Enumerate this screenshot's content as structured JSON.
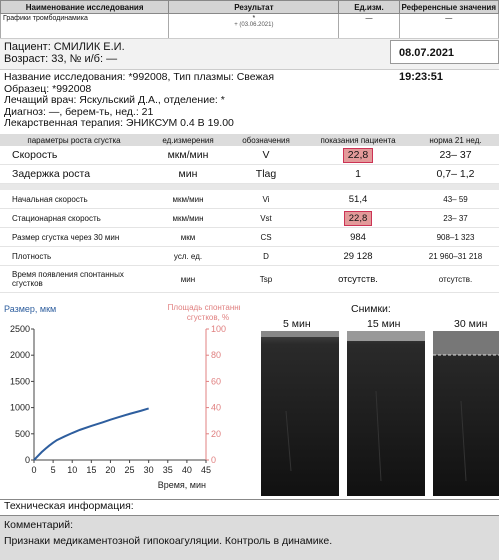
{
  "top_table": {
    "headers": [
      "Наименование исследования",
      "Результат",
      "Ед.изм.",
      "Референсные значения"
    ],
    "row": {
      "name": "Графики тромбодинамика",
      "result": "*",
      "result_sub": "+ (03.06.2021)",
      "unit": "—",
      "ref": "—"
    }
  },
  "patient": {
    "line1": "Пациент: СМИЛИК Е.И.",
    "line2": "Возраст: 33, № и/б: —",
    "date": "08.07.2021 19:23:51"
  },
  "info": {
    "line1": "Название исследования: *992008, Тип плазмы: Свежая",
    "line2": "Образец: *992008",
    "line3": "Лечащий врач: Яскульский Д.А., отделение: *",
    "line4": "Диагноз: —, берем-ть, нед.: 21",
    "line5": "Лекарственная терапия: ЭНИКСУМ 0.4 В 19.00"
  },
  "params": {
    "headers": [
      "параметры роста сгустка",
      "ед.измерения",
      "обозначения",
      "показания пациента",
      "норма 21 нед."
    ],
    "rows": [
      {
        "name": "Скорость",
        "unit": "мкм/мин",
        "sym": "V",
        "val": "22,8",
        "norm": "23– 37",
        "hl": true,
        "big": true
      },
      {
        "name": "Задержка роста",
        "unit": "мин",
        "sym": "Tlag",
        "val": "1",
        "norm": "0,7– 1,2",
        "hl": false,
        "big": true
      },
      {
        "name": "Начальная скорость",
        "unit": "мкм/мин",
        "sym": "Vi",
        "val": "51,4",
        "norm": "43– 59",
        "hl": false,
        "big": false
      },
      {
        "name": "Стационарная скорость",
        "unit": "мкм/мин",
        "sym": "Vst",
        "val": "22,8",
        "norm": "23– 37",
        "hl": true,
        "big": false
      },
      {
        "name": "Размер сгустка через 30 мин",
        "unit": "мкм",
        "sym": "CS",
        "val": "984",
        "norm": "908–1 323",
        "hl": false,
        "big": false
      },
      {
        "name": "Плотность",
        "unit": "усл. ед.",
        "sym": "D",
        "val": "29 128",
        "norm": "21 960–31 218",
        "hl": false,
        "big": false
      },
      {
        "name": "Время появления спонтанных сгустков",
        "unit": "мин",
        "sym": "Tsp",
        "val": "отсутств.",
        "norm": "отсутств.",
        "hl": false,
        "big": false
      }
    ]
  },
  "chart_data": {
    "type": "line",
    "y_left_label": "Размер, мкм",
    "y_right_label_1": "Площадь спонтанных",
    "y_right_label_2": "сгустков, %",
    "xlabel": "Время, мин",
    "xlim": [
      0,
      45
    ],
    "ylim_left": [
      0,
      2500
    ],
    "ylim_right": [
      0,
      100
    ],
    "x_ticks": [
      0,
      5,
      10,
      15,
      20,
      25,
      30,
      35,
      40,
      45
    ],
    "y_left_ticks": [
      0,
      500,
      1000,
      1500,
      2000,
      2500
    ],
    "y_right_ticks": [
      0,
      20,
      40,
      60,
      80,
      100
    ],
    "series": [
      {
        "x": [
          0,
          1,
          2,
          3,
          4,
          5,
          6,
          8,
          10,
          12,
          15,
          18,
          20,
          22,
          25,
          28,
          30
        ],
        "y": [
          0,
          75,
          150,
          215,
          275,
          330,
          380,
          450,
          515,
          575,
          650,
          720,
          770,
          815,
          880,
          940,
          984
        ]
      }
    ],
    "colors": {
      "line": "#2e5e9e",
      "left_axis": "#2e5e9e",
      "right_axis": "#e08080"
    }
  },
  "snapshots": {
    "title": "Снимки:",
    "labels": [
      "5 мин",
      "15 мин",
      "30 мин"
    ]
  },
  "tech": "Техническая информация:",
  "comment": {
    "label": "Комментарий:",
    "text": "Признаки медикаментозной гипокоагуляции. Контроль в динамике."
  }
}
